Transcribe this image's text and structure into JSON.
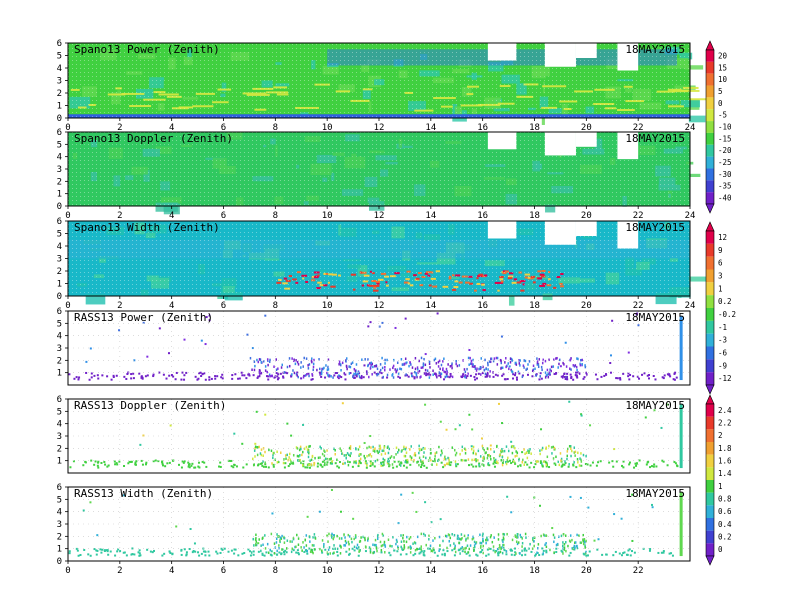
{
  "panels": [
    {
      "title": "Spano13 Power (Zenith)",
      "date": "18MAY2015",
      "x_ticks": [
        "0",
        "2",
        "4",
        "6",
        "8",
        "10",
        "12",
        "14",
        "16",
        "18",
        "20",
        "22",
        "24"
      ],
      "y_ticks": [
        "0",
        "1",
        "2",
        "3",
        "4",
        "5",
        "6"
      ]
    },
    {
      "title": "Spano13 Doppler (Zenith)",
      "date": "18MAY2015",
      "x_ticks": [
        "0",
        "2",
        "4",
        "6",
        "8",
        "10",
        "12",
        "14",
        "16",
        "18",
        "20",
        "22",
        "24"
      ],
      "y_ticks": [
        "0",
        "1",
        "2",
        "3",
        "4",
        "5",
        "6"
      ]
    },
    {
      "title": "Spano13 Width (Zenith)",
      "date": "18MAY2015",
      "x_ticks": [
        "0",
        "2",
        "4",
        "6",
        "8",
        "10",
        "12",
        "14",
        "16",
        "18",
        "20",
        "22",
        "24"
      ],
      "y_ticks": [
        "0",
        "1",
        "2",
        "3",
        "4",
        "5",
        "6"
      ]
    },
    {
      "title": "RASS13 Power (Zenith)",
      "date": "18MAY2015",
      "x_ticks": [],
      "y_ticks": [
        "1",
        "2",
        "3",
        "4",
        "5",
        "6"
      ]
    },
    {
      "title": "RASS13 Doppler (Zenith)",
      "date": "18MAY2015",
      "x_ticks": [],
      "y_ticks": [
        "1",
        "2",
        "3",
        "4",
        "5",
        "6"
      ]
    },
    {
      "title": "RASS13 Width (Zenith)",
      "date": "18MAY2015",
      "x_ticks": [
        "0",
        "2",
        "4",
        "6",
        "8",
        "10",
        "12",
        "14",
        "16",
        "18",
        "20",
        "22"
      ],
      "y_ticks": [
        "0",
        "1",
        "2",
        "3",
        "4",
        "5",
        "6"
      ]
    }
  ],
  "colorbars": [
    {
      "labels": [
        "20",
        "15",
        "10",
        "5",
        "0",
        "-5",
        "-10",
        "-15",
        "-20",
        "-25",
        "-30",
        "-35",
        "-40"
      ],
      "colors": [
        "#e0004a",
        "#e83a2a",
        "#f07030",
        "#f0a030",
        "#f0d040",
        "#d0e840",
        "#90e040",
        "#40d040",
        "#30c8a0",
        "#30b0d8",
        "#3070e0",
        "#4040d0",
        "#7020c8"
      ]
    },
    {
      "labels": [
        "12",
        "9",
        "6",
        "3",
        "1",
        "0.2",
        "-0.2",
        "-1",
        "-3",
        "-6",
        "-9",
        "-12"
      ],
      "colors": [
        "#e0004a",
        "#e83a2a",
        "#f07030",
        "#f0a030",
        "#f0d040",
        "#90e040",
        "#40d040",
        "#30c8a0",
        "#30b0d8",
        "#3070e0",
        "#4040d0",
        "#7020c8"
      ]
    },
    {
      "labels": [
        "2.4",
        "2.2",
        "2",
        "1.8",
        "1.6",
        "1.4",
        "1",
        "0.8",
        "0.6",
        "0.4",
        "0.2",
        "0"
      ],
      "colors": [
        "#e0004a",
        "#e83a2a",
        "#f07030",
        "#f0a030",
        "#f0d040",
        "#d0e840",
        "#40d040",
        "#30c8a0",
        "#30b0d8",
        "#3070e0",
        "#4040d0",
        "#7020c8"
      ]
    }
  ]
}
